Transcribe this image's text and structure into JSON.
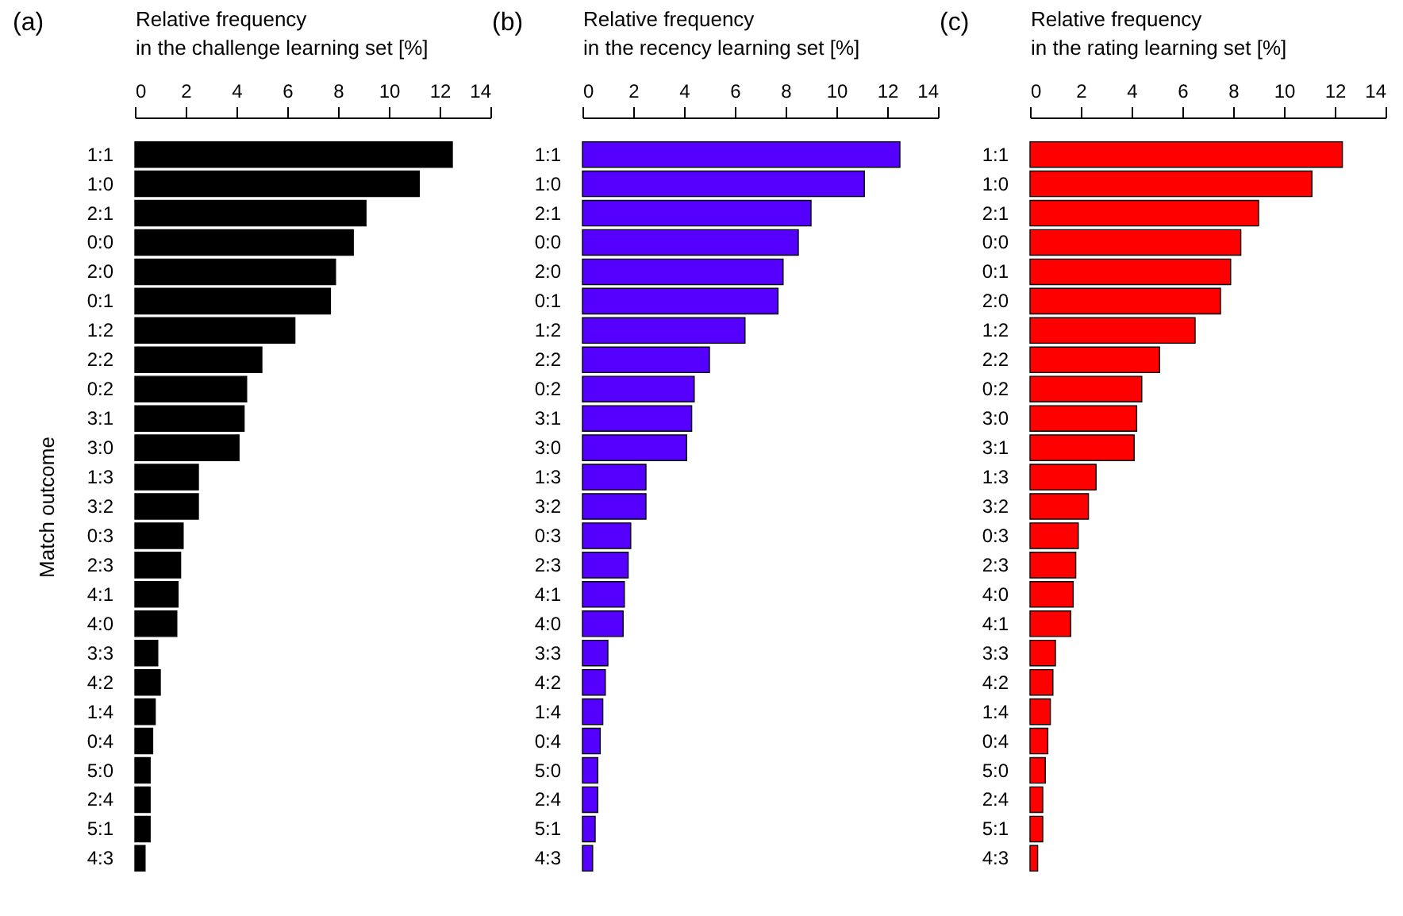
{
  "chart_data": [
    {
      "type": "bar",
      "orientation": "horizontal",
      "title": "(a)",
      "xlabel": "Relative frequency\nin the challenge learning set [%]",
      "ylabel": "Match outcome",
      "categories": [
        "1:1",
        "1:0",
        "2:1",
        "0:0",
        "2:0",
        "0:1",
        "1:2",
        "2:2",
        "0:2",
        "3:1",
        "3:0",
        "1:3",
        "3:2",
        "0:3",
        "2:3",
        "4:1",
        "4:0",
        "3:3",
        "4:2",
        "1:4",
        "0:4",
        "5:0",
        "2:4",
        "5:1",
        "4:3"
      ],
      "values": [
        12.5,
        11.2,
        9.1,
        8.6,
        7.9,
        7.7,
        6.3,
        5.0,
        4.4,
        4.3,
        4.1,
        2.5,
        2.5,
        1.9,
        1.8,
        1.7,
        1.65,
        0.9,
        1.0,
        0.8,
        0.7,
        0.6,
        0.6,
        0.6,
        0.4
      ],
      "color": "#000000",
      "xlim": [
        0,
        14
      ],
      "xticks": [
        0,
        2,
        4,
        6,
        8,
        10,
        12,
        14
      ],
      "grid": false
    },
    {
      "type": "bar",
      "orientation": "horizontal",
      "title": "(b)",
      "xlabel": "Relative frequency\nin the recency learning set [%]",
      "categories": [
        "1:1",
        "1:0",
        "2:1",
        "0:0",
        "2:0",
        "0:1",
        "1:2",
        "2:2",
        "0:2",
        "3:1",
        "3:0",
        "1:3",
        "3:2",
        "0:3",
        "2:3",
        "4:1",
        "4:0",
        "3:3",
        "4:2",
        "1:4",
        "0:4",
        "5:0",
        "2:4",
        "5:1",
        "4:3"
      ],
      "values": [
        12.5,
        11.1,
        9.0,
        8.5,
        7.9,
        7.7,
        6.4,
        5.0,
        4.4,
        4.3,
        4.1,
        2.5,
        2.5,
        1.9,
        1.8,
        1.65,
        1.6,
        1.0,
        0.9,
        0.8,
        0.7,
        0.6,
        0.6,
        0.5,
        0.4
      ],
      "color": "#5500ff",
      "xlim": [
        0,
        14
      ],
      "xticks": [
        0,
        2,
        4,
        6,
        8,
        10,
        12,
        14
      ],
      "grid": false
    },
    {
      "type": "bar",
      "orientation": "horizontal",
      "title": "(c)",
      "xlabel": "Relative frequency\nin the rating learning set [%]",
      "categories": [
        "1:1",
        "1:0",
        "2:1",
        "0:0",
        "0:1",
        "2:0",
        "1:2",
        "2:2",
        "0:2",
        "3:0",
        "3:1",
        "1:3",
        "3:2",
        "0:3",
        "2:3",
        "4:0",
        "4:1",
        "3:3",
        "4:2",
        "1:4",
        "0:4",
        "5:0",
        "2:4",
        "5:1",
        "4:3"
      ],
      "values": [
        12.3,
        11.1,
        9.0,
        8.3,
        7.9,
        7.5,
        6.5,
        5.1,
        4.4,
        4.2,
        4.1,
        2.6,
        2.3,
        1.9,
        1.8,
        1.7,
        1.6,
        1.0,
        0.9,
        0.8,
        0.7,
        0.6,
        0.5,
        0.5,
        0.3
      ],
      "color": "#ff0000",
      "xlim": [
        0,
        14
      ],
      "xticks": [
        0,
        2,
        4,
        6,
        8,
        10,
        12,
        14
      ],
      "grid": false
    }
  ]
}
